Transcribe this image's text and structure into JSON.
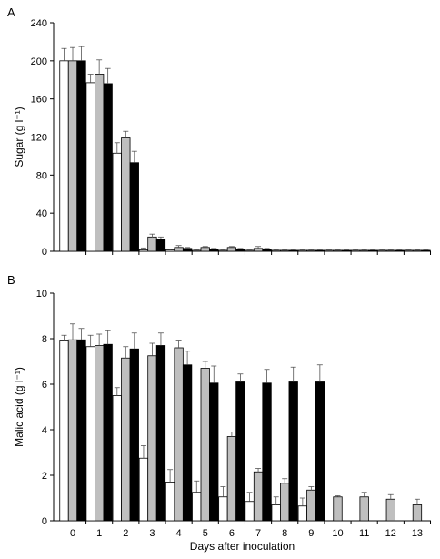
{
  "chart_data": [
    {
      "type": "bar",
      "panel_label": "A",
      "ylabel": "Sugar (g l⁻¹)",
      "xlabel": "",
      "ylim": [
        0,
        240
      ],
      "yticks": [
        0,
        40,
        80,
        120,
        160,
        200,
        240
      ],
      "categories": [
        "0",
        "1",
        "2",
        "3",
        "4",
        "5",
        "6",
        "7",
        "8",
        "9",
        "10",
        "11",
        "12",
        "13"
      ],
      "tick_labels_shown": false,
      "colors": [
        "#ffffff",
        "#bfbfbf",
        "#000000"
      ],
      "series": [
        {
          "values": [
            200,
            177,
            103,
            1.5,
            1.5,
            1,
            1,
            1,
            1,
            1,
            1,
            1,
            1,
            1
          ],
          "errors": [
            13,
            9,
            11,
            2,
            1,
            1,
            1,
            1,
            1,
            1,
            1,
            1,
            1,
            1
          ]
        },
        {
          "values": [
            200,
            186,
            119,
            15,
            4,
            4,
            4,
            3,
            1,
            1,
            1,
            1,
            1,
            1
          ],
          "errors": [
            14,
            15,
            7,
            3,
            2,
            1,
            1,
            2,
            1,
            1,
            1,
            1,
            1,
            1
          ]
        },
        {
          "values": [
            200,
            176,
            93,
            13,
            3,
            2,
            2,
            2,
            1,
            1,
            1,
            1,
            1,
            1
          ],
          "errors": [
            15,
            16,
            12,
            2,
            1,
            1,
            1,
            1,
            1,
            1,
            1,
            1,
            1,
            1
          ]
        }
      ]
    },
    {
      "type": "bar",
      "panel_label": "B",
      "ylabel": "Malic acid (g l⁻¹)",
      "xlabel": "Days after inoculation",
      "ylim": [
        0,
        10
      ],
      "yticks": [
        0,
        2,
        4,
        6,
        8,
        10
      ],
      "categories": [
        "0",
        "1",
        "2",
        "3",
        "4",
        "5",
        "6",
        "7",
        "8",
        "9",
        "10",
        "11",
        "12",
        "13"
      ],
      "tick_labels_shown": true,
      "colors": [
        "#ffffff",
        "#bfbfbf",
        "#000000"
      ],
      "series": [
        {
          "values": [
            7.9,
            7.65,
            5.5,
            2.75,
            1.7,
            1.25,
            1.05,
            0.85,
            0.7,
            0.65,
            null,
            null,
            null,
            null
          ],
          "errors": [
            0.25,
            0.5,
            0.35,
            0.55,
            0.55,
            0.5,
            0.45,
            0.4,
            0.35,
            0.35,
            null,
            null,
            null,
            null
          ]
        },
        {
          "values": [
            7.95,
            7.7,
            7.15,
            7.25,
            7.6,
            6.7,
            3.7,
            2.15,
            1.65,
            1.35,
            1.05,
            1.05,
            0.95,
            0.7
          ],
          "errors": [
            0.7,
            0.5,
            0.5,
            0.55,
            0.3,
            0.3,
            0.2,
            0.15,
            0.2,
            0.15,
            0.05,
            0.2,
            0.2,
            0.25
          ]
        },
        {
          "values": [
            7.95,
            7.75,
            7.55,
            7.7,
            6.85,
            6.05,
            6.1,
            6.05,
            6.1,
            6.1,
            null,
            null,
            null,
            null
          ],
          "errors": [
            0.5,
            0.6,
            0.7,
            0.55,
            0.6,
            0.75,
            0.35,
            0.6,
            0.65,
            0.75,
            null,
            null,
            null,
            null
          ]
        }
      ]
    }
  ]
}
